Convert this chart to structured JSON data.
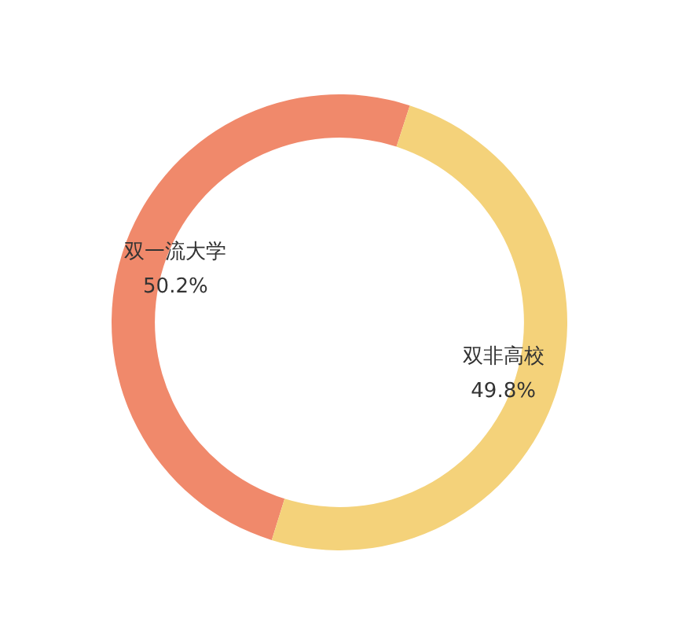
{
  "chart_data": {
    "type": "donut",
    "categories": [
      "双一流大学",
      "双非高校"
    ],
    "values": [
      50.2,
      49.8
    ],
    "colors": [
      "#f0896b",
      "#f4d27a"
    ],
    "value_labels": [
      "50.2%",
      "49.8%"
    ],
    "legend": false
  }
}
